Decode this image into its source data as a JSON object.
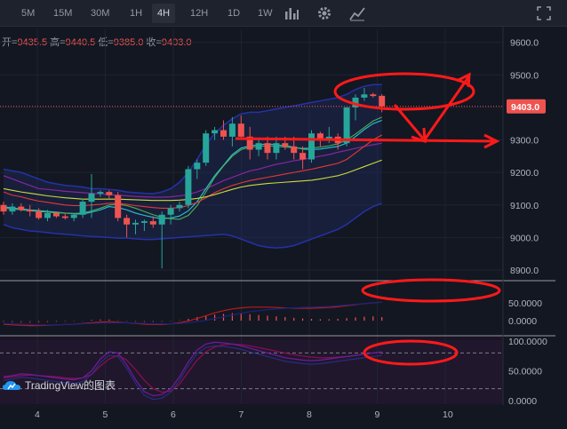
{
  "toolbar": {
    "timeframes": [
      "5M",
      "15M",
      "30M",
      "1H",
      "4H",
      "12H",
      "1D",
      "1W"
    ],
    "active": "4H",
    "icons": [
      "bar-chart-icon",
      "gear-icon",
      "indicator-icon",
      "fullscreen-icon"
    ]
  },
  "ohlc": {
    "open_label": "开=",
    "open": "9435.5",
    "high_label": "高=",
    "high": "9440.5",
    "low_label": "低=",
    "low": "9385.0",
    "close_label": "收=",
    "close": "9403.0"
  },
  "current_price": "9403.0",
  "watermark": "TradingView的图表",
  "colors": {
    "up": "#26a69a",
    "down": "#ef5350",
    "background": "#131722",
    "annotation": "#ff1a1a"
  },
  "chart_data": [
    {
      "type": "candlestick",
      "x_ticks": [
        "4",
        "5",
        "6",
        "7",
        "8",
        "9",
        "10"
      ],
      "y_ticks": [
        "9600.0",
        "9500.0",
        "9400.0",
        "9300.0",
        "9200.0",
        "9100.0",
        "9000.0",
        "8900.0"
      ],
      "ylim": [
        8870,
        9640
      ],
      "candles": [
        [
          9100,
          9110,
          9070,
          9080
        ],
        [
          9080,
          9105,
          9070,
          9095
        ],
        [
          9095,
          9105,
          9080,
          9085
        ],
        [
          9085,
          9100,
          9065,
          9080
        ],
        [
          9080,
          9090,
          9055,
          9060
        ],
        [
          9060,
          9085,
          9050,
          9075
        ],
        [
          9075,
          9080,
          9060,
          9065
        ],
        [
          9065,
          9075,
          9055,
          9060
        ],
        [
          9060,
          9075,
          9050,
          9070
        ],
        [
          9070,
          9120,
          9060,
          9110
        ],
        [
          9110,
          9195,
          9060,
          9135
        ],
        [
          9135,
          9145,
          9125,
          9140
        ],
        [
          9140,
          9145,
          9120,
          9130
        ],
        [
          9130,
          9140,
          9050,
          9060
        ],
        [
          9060,
          9070,
          9000,
          9040
        ],
        [
          9040,
          9055,
          9010,
          9045
        ],
        [
          9045,
          9055,
          9020,
          9050
        ],
        [
          9050,
          9065,
          9030,
          9040
        ],
        [
          9040,
          9080,
          8905,
          9070
        ],
        [
          9070,
          9100,
          9040,
          9090
        ],
        [
          9090,
          9110,
          9080,
          9100
        ],
        [
          9100,
          9220,
          9090,
          9210
        ],
        [
          9210,
          9240,
          9180,
          9230
        ],
        [
          9230,
          9330,
          9220,
          9320
        ],
        [
          9320,
          9340,
          9300,
          9330
        ],
        [
          9330,
          9360,
          9300,
          9310
        ],
        [
          9310,
          9370,
          9280,
          9350
        ],
        [
          9350,
          9375,
          9300,
          9310
        ],
        [
          9310,
          9340,
          9240,
          9270
        ],
        [
          9270,
          9300,
          9250,
          9290
        ],
        [
          9290,
          9310,
          9240,
          9260
        ],
        [
          9260,
          9310,
          9240,
          9290
        ],
        [
          9290,
          9310,
          9270,
          9280
        ],
        [
          9280,
          9310,
          9240,
          9260
        ],
        [
          9260,
          9280,
          9210,
          9240
        ],
        [
          9240,
          9330,
          9230,
          9320
        ],
        [
          9320,
          9325,
          9280,
          9300
        ],
        [
          9300,
          9340,
          9290,
          9310
        ],
        [
          9310,
          9320,
          9270,
          9290
        ],
        [
          9290,
          9400,
          9280,
          9400
        ],
        [
          9400,
          9440,
          9360,
          9430
        ],
        [
          9430,
          9460,
          9420,
          9440
        ],
        [
          9440,
          9445,
          9430,
          9435
        ],
        [
          9435.5,
          9440.5,
          9385.0,
          9403.0
        ]
      ],
      "current": 9403.0
    },
    {
      "type": "bar",
      "y_ticks": [
        "50.0000",
        "0.0000"
      ],
      "ylim": [
        -20,
        75
      ]
    },
    {
      "type": "line",
      "y_ticks": [
        "100.0000",
        "50.0000",
        "0.0000"
      ],
      "ylim": [
        -5,
        105
      ],
      "reference_lines": [
        80,
        20
      ]
    }
  ]
}
